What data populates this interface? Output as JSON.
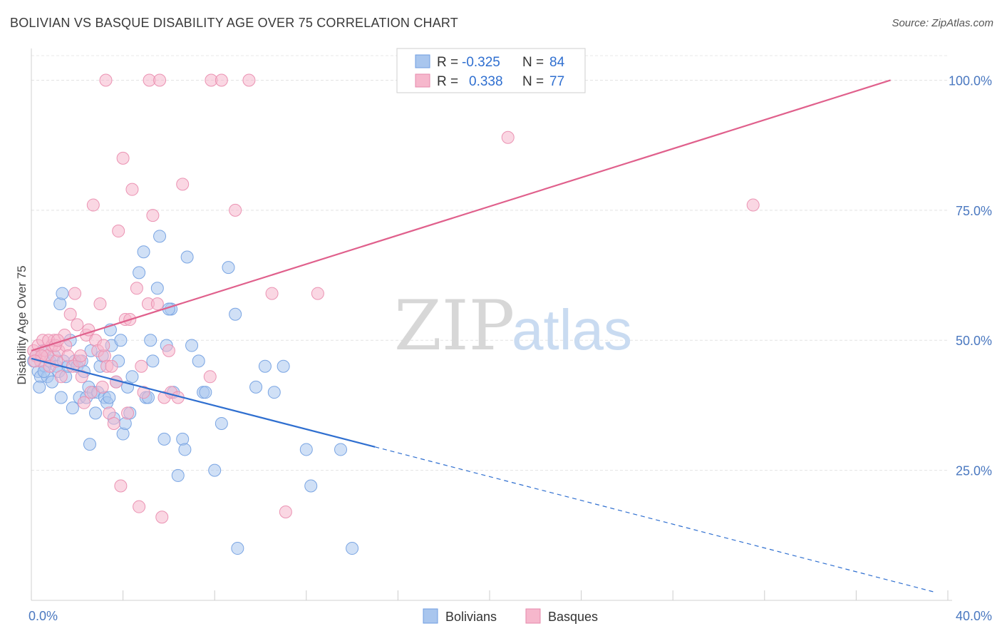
{
  "header": {
    "title": "BOLIVIAN VS BASQUE DISABILITY AGE OVER 75 CORRELATION CHART",
    "source": "Source: ZipAtlas.com"
  },
  "watermark": {
    "zip": "ZIP",
    "atlas": "atlas"
  },
  "legend": {
    "rows": [
      {
        "r_label": "R =",
        "r_value": "-0.325",
        "n_label": "N =",
        "n_value": "84"
      },
      {
        "r_label": "R =",
        "r_value": "0.338",
        "n_label": "N =",
        "n_value": "77"
      }
    ]
  },
  "chart_data": {
    "type": "scatter",
    "ylabel": "Disability Age Over 75",
    "xlim": [
      0,
      40
    ],
    "ylim": [
      0,
      105
    ],
    "x_tick_labels": [
      "0.0%",
      "40.0%"
    ],
    "y_ticks": [
      25,
      50,
      75,
      100
    ],
    "y_tick_labels": [
      "25.0%",
      "50.0%",
      "75.0%",
      "100.0%"
    ],
    "grid": true,
    "colors": {
      "bolivians": "#2f6fd0",
      "basques": "#e0608c",
      "bolivians_fill": "#a9c6ee",
      "basques_fill": "#f6b7cc"
    },
    "series": [
      {
        "name": "Bolivians",
        "r": -0.325,
        "n": 84,
        "trend": {
          "x0": 0,
          "y0": 46.5,
          "x1": 15,
          "y1": 29.5,
          "dashed_to_x": 39.5,
          "dashed_to_y": 1.5
        },
        "points": [
          [
            0.1,
            46
          ],
          [
            0.2,
            47
          ],
          [
            0.3,
            44
          ],
          [
            0.4,
            43
          ],
          [
            0.5,
            48
          ],
          [
            0.6,
            45
          ],
          [
            0.7,
            43
          ],
          [
            0.8,
            46
          ],
          [
            0.9,
            42
          ],
          [
            1.0,
            47
          ],
          [
            1.1,
            45
          ],
          [
            1.2,
            44
          ],
          [
            1.3,
            39
          ],
          [
            1.4,
            46
          ],
          [
            1.5,
            43
          ],
          [
            1.6,
            45
          ],
          [
            1.7,
            50
          ],
          [
            1.8,
            37
          ],
          [
            1.9,
            46
          ],
          [
            2.0,
            45
          ],
          [
            2.1,
            39
          ],
          [
            2.2,
            46
          ],
          [
            2.4,
            39
          ],
          [
            2.5,
            41
          ],
          [
            2.6,
            48
          ],
          [
            2.7,
            40
          ],
          [
            2.8,
            36
          ],
          [
            2.9,
            40
          ],
          [
            3.0,
            45
          ],
          [
            3.1,
            47
          ],
          [
            3.2,
            39
          ],
          [
            3.3,
            38
          ],
          [
            3.4,
            39
          ],
          [
            3.5,
            49
          ],
          [
            3.6,
            35
          ],
          [
            3.7,
            42
          ],
          [
            3.8,
            46
          ],
          [
            3.9,
            50
          ],
          [
            4.0,
            32
          ],
          [
            4.1,
            34
          ],
          [
            4.2,
            41
          ],
          [
            4.3,
            36
          ],
          [
            4.4,
            43
          ],
          [
            4.7,
            63
          ],
          [
            4.9,
            67
          ],
          [
            5.0,
            39
          ],
          [
            5.1,
            39
          ],
          [
            5.2,
            50
          ],
          [
            5.3,
            46
          ],
          [
            5.5,
            60
          ],
          [
            5.6,
            70
          ],
          [
            5.8,
            31
          ],
          [
            5.9,
            49
          ],
          [
            6.1,
            56
          ],
          [
            6.2,
            40
          ],
          [
            6.4,
            24
          ],
          [
            6.6,
            31
          ],
          [
            6.7,
            29
          ],
          [
            6.8,
            66
          ],
          [
            7.0,
            49
          ],
          [
            7.3,
            46
          ],
          [
            7.5,
            40
          ],
          [
            7.6,
            40
          ],
          [
            8.0,
            25
          ],
          [
            8.3,
            34
          ],
          [
            8.6,
            64
          ],
          [
            8.9,
            55
          ],
          [
            9.8,
            41
          ],
          [
            10.2,
            45
          ],
          [
            10.6,
            40
          ],
          [
            11.0,
            45
          ],
          [
            12.0,
            29
          ],
          [
            12.2,
            22
          ],
          [
            13.5,
            29
          ],
          [
            14.0,
            10
          ],
          [
            2.3,
            44
          ],
          [
            1.25,
            57
          ],
          [
            1.35,
            59
          ],
          [
            2.55,
            30
          ],
          [
            3.45,
            52
          ],
          [
            0.35,
            41
          ],
          [
            0.55,
            44
          ],
          [
            9.0,
            10
          ],
          [
            6.0,
            56
          ]
        ]
      },
      {
        "name": "Basques",
        "r": 0.338,
        "n": 77,
        "trend": {
          "x0": 0,
          "y0": 48,
          "x1": 37.5,
          "y1": 100
        },
        "points": [
          [
            0.1,
            48
          ],
          [
            0.2,
            47
          ],
          [
            0.3,
            49
          ],
          [
            0.4,
            46
          ],
          [
            0.5,
            50
          ],
          [
            0.6,
            48
          ],
          [
            0.7,
            47
          ],
          [
            0.8,
            45
          ],
          [
            0.9,
            49
          ],
          [
            1.0,
            50
          ],
          [
            1.1,
            46
          ],
          [
            1.2,
            48
          ],
          [
            1.3,
            43
          ],
          [
            1.5,
            49
          ],
          [
            1.6,
            47
          ],
          [
            1.7,
            55
          ],
          [
            1.8,
            45
          ],
          [
            1.9,
            59
          ],
          [
            2.0,
            53
          ],
          [
            2.1,
            46
          ],
          [
            2.2,
            43
          ],
          [
            2.3,
            38
          ],
          [
            2.4,
            51
          ],
          [
            2.5,
            52
          ],
          [
            2.6,
            40
          ],
          [
            2.7,
            76
          ],
          [
            2.8,
            50
          ],
          [
            2.9,
            48
          ],
          [
            3.0,
            57
          ],
          [
            3.1,
            41
          ],
          [
            3.2,
            47
          ],
          [
            3.3,
            45
          ],
          [
            3.4,
            36
          ],
          [
            3.5,
            45
          ],
          [
            3.6,
            34
          ],
          [
            3.7,
            42
          ],
          [
            3.8,
            71
          ],
          [
            3.9,
            22
          ],
          [
            4.0,
            85
          ],
          [
            4.1,
            54
          ],
          [
            4.2,
            36
          ],
          [
            4.4,
            79
          ],
          [
            4.6,
            60
          ],
          [
            4.7,
            18
          ],
          [
            4.8,
            45
          ],
          [
            4.9,
            40
          ],
          [
            5.1,
            57
          ],
          [
            5.3,
            74
          ],
          [
            5.5,
            57
          ],
          [
            5.7,
            16
          ],
          [
            5.8,
            39
          ],
          [
            6.0,
            48
          ],
          [
            6.1,
            40
          ],
          [
            6.6,
            80
          ],
          [
            7.8,
            43
          ],
          [
            8.9,
            75
          ],
          [
            10.5,
            59
          ],
          [
            11.1,
            17
          ],
          [
            12.5,
            59
          ],
          [
            20.8,
            89
          ],
          [
            31.5,
            76
          ],
          [
            3.25,
            100
          ],
          [
            5.15,
            100
          ],
          [
            5.6,
            100
          ],
          [
            7.85,
            100
          ],
          [
            8.3,
            100
          ],
          [
            9.5,
            100
          ],
          [
            0.45,
            47
          ],
          [
            0.75,
            50
          ],
          [
            1.45,
            51
          ],
          [
            2.15,
            47
          ],
          [
            3.15,
            49
          ],
          [
            6.4,
            39
          ],
          [
            4.3,
            54
          ],
          [
            1.05,
            49
          ],
          [
            1.15,
            50
          ],
          [
            0.15,
            46
          ]
        ]
      }
    ]
  },
  "bottom_legend": {
    "items": [
      "Bolivians",
      "Basques"
    ]
  }
}
